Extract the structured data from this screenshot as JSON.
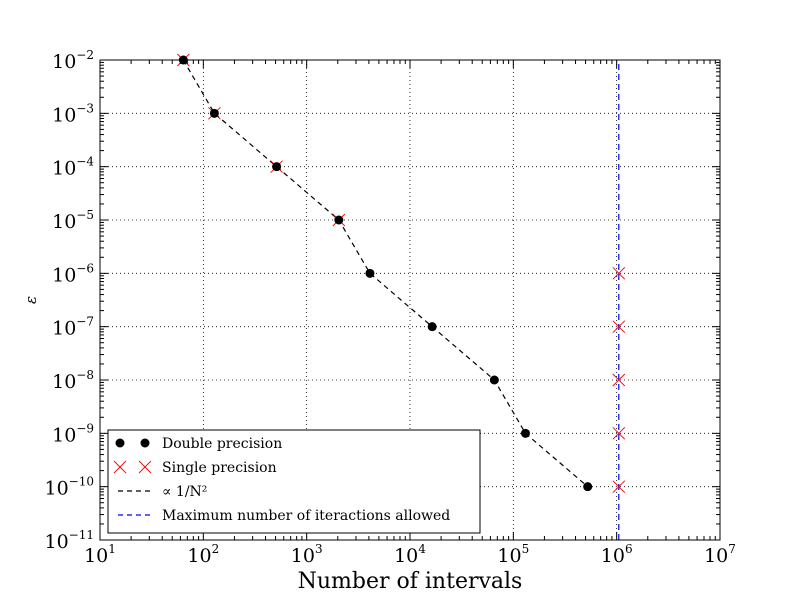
{
  "chart_data": {
    "type": "scatter",
    "title": "",
    "xlabel": "Number of intervals",
    "ylabel": "ε",
    "xscale": "log",
    "yscale": "log",
    "xlim": [
      10,
      10000000
    ],
    "ylim": [
      1e-11,
      0.01
    ],
    "grid": true,
    "grid_style": "dotted",
    "legend_position": "lower-left",
    "x_tick_labels": [
      {
        "base": "10",
        "exp": "1"
      },
      {
        "base": "10",
        "exp": "2"
      },
      {
        "base": "10",
        "exp": "3"
      },
      {
        "base": "10",
        "exp": "4"
      },
      {
        "base": "10",
        "exp": "5"
      },
      {
        "base": "10",
        "exp": "6"
      },
      {
        "base": "10",
        "exp": "7"
      }
    ],
    "y_tick_labels": [
      {
        "base": "10",
        "exp": "−2"
      },
      {
        "base": "10",
        "exp": "−3"
      },
      {
        "base": "10",
        "exp": "−4"
      },
      {
        "base": "10",
        "exp": "−5"
      },
      {
        "base": "10",
        "exp": "−6"
      },
      {
        "base": "10",
        "exp": "−7"
      },
      {
        "base": "10",
        "exp": "−8"
      },
      {
        "base": "10",
        "exp": "−9"
      },
      {
        "base": "10",
        "exp": "−10"
      },
      {
        "base": "10",
        "exp": "−11"
      }
    ],
    "series": [
      {
        "name": "Double precision",
        "marker": "circle",
        "color": "#000000",
        "x": [
          64,
          128,
          512,
          2048,
          4096,
          16384,
          65536,
          131072,
          524288
        ],
        "y": [
          0.01,
          0.001,
          0.0001,
          1e-05,
          1e-06,
          1e-07,
          1e-08,
          1e-09,
          1e-10
        ]
      },
      {
        "name": "Single precision",
        "marker": "x",
        "color": "#ff0000",
        "x": [
          64,
          128,
          512,
          2048,
          1048576,
          1048576,
          1048576,
          1048576,
          1048576
        ],
        "y": [
          0.01,
          0.001,
          0.0001,
          1e-05,
          1e-06,
          1e-07,
          1e-08,
          1e-09,
          1e-10
        ]
      },
      {
        "name": "∝ 1/N²",
        "marker": "dashed-line",
        "color": "#000000",
        "x": [
          64,
          128,
          512,
          2048,
          4096,
          16384,
          65536,
          131072,
          524288
        ],
        "y": [
          0.01,
          0.001,
          0.0001,
          1e-05,
          1e-06,
          1e-07,
          1e-08,
          1e-09,
          1e-10
        ]
      },
      {
        "name": "Maximum number of iteractions allowed",
        "marker": "dashed-vertical-line",
        "color": "#0000ff",
        "x": [
          1048576,
          1048576
        ],
        "y": [
          1e-11,
          0.01
        ]
      }
    ]
  }
}
